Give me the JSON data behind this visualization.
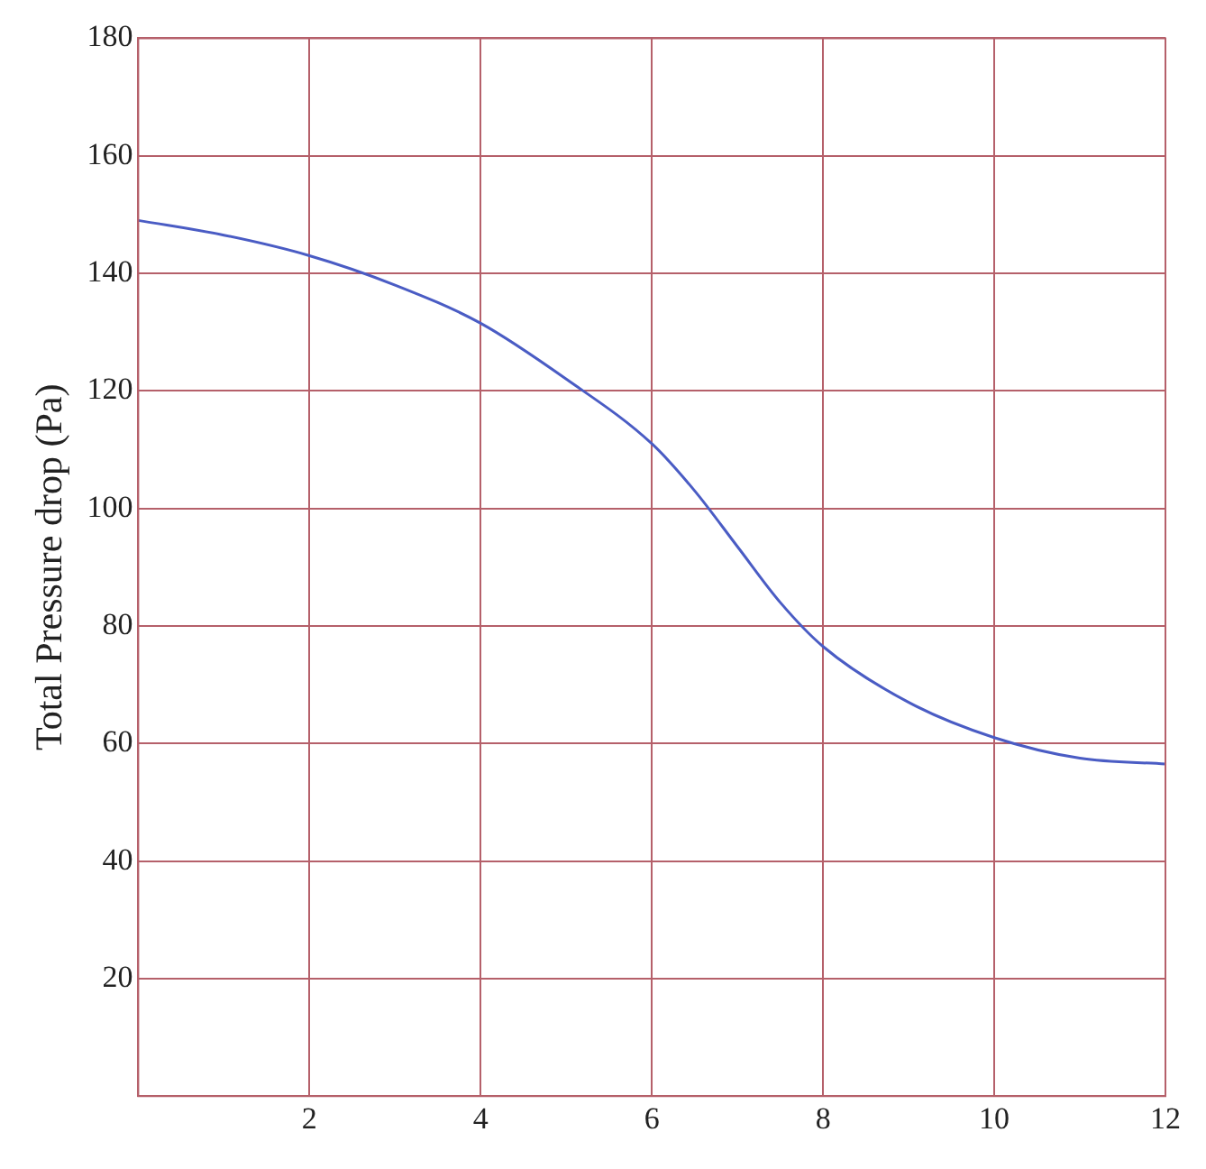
{
  "chart_data": {
    "type": "line",
    "ylabel": "Total Pressure drop (Pa)",
    "x": [
      0,
      1,
      2,
      3,
      4,
      5,
      6,
      6.5,
      7,
      7.5,
      8,
      9,
      10,
      11,
      12
    ],
    "series": [
      {
        "color": "#4a5cc4",
        "values": [
          149,
          146.5,
          143,
          138,
          131.5,
          122,
          111,
          103,
          93.5,
          84,
          76.5,
          67,
          61,
          57.5,
          56.5
        ]
      }
    ],
    "xlim": [
      0,
      12
    ],
    "xticks": [
      2,
      4,
      6,
      8,
      10,
      12
    ],
    "ylim": [
      0,
      180
    ],
    "yticks": [
      20,
      40,
      60,
      80,
      100,
      120,
      140,
      160,
      180
    ],
    "grid": true,
    "legend": false,
    "marker": "none",
    "line_style": "solid"
  }
}
